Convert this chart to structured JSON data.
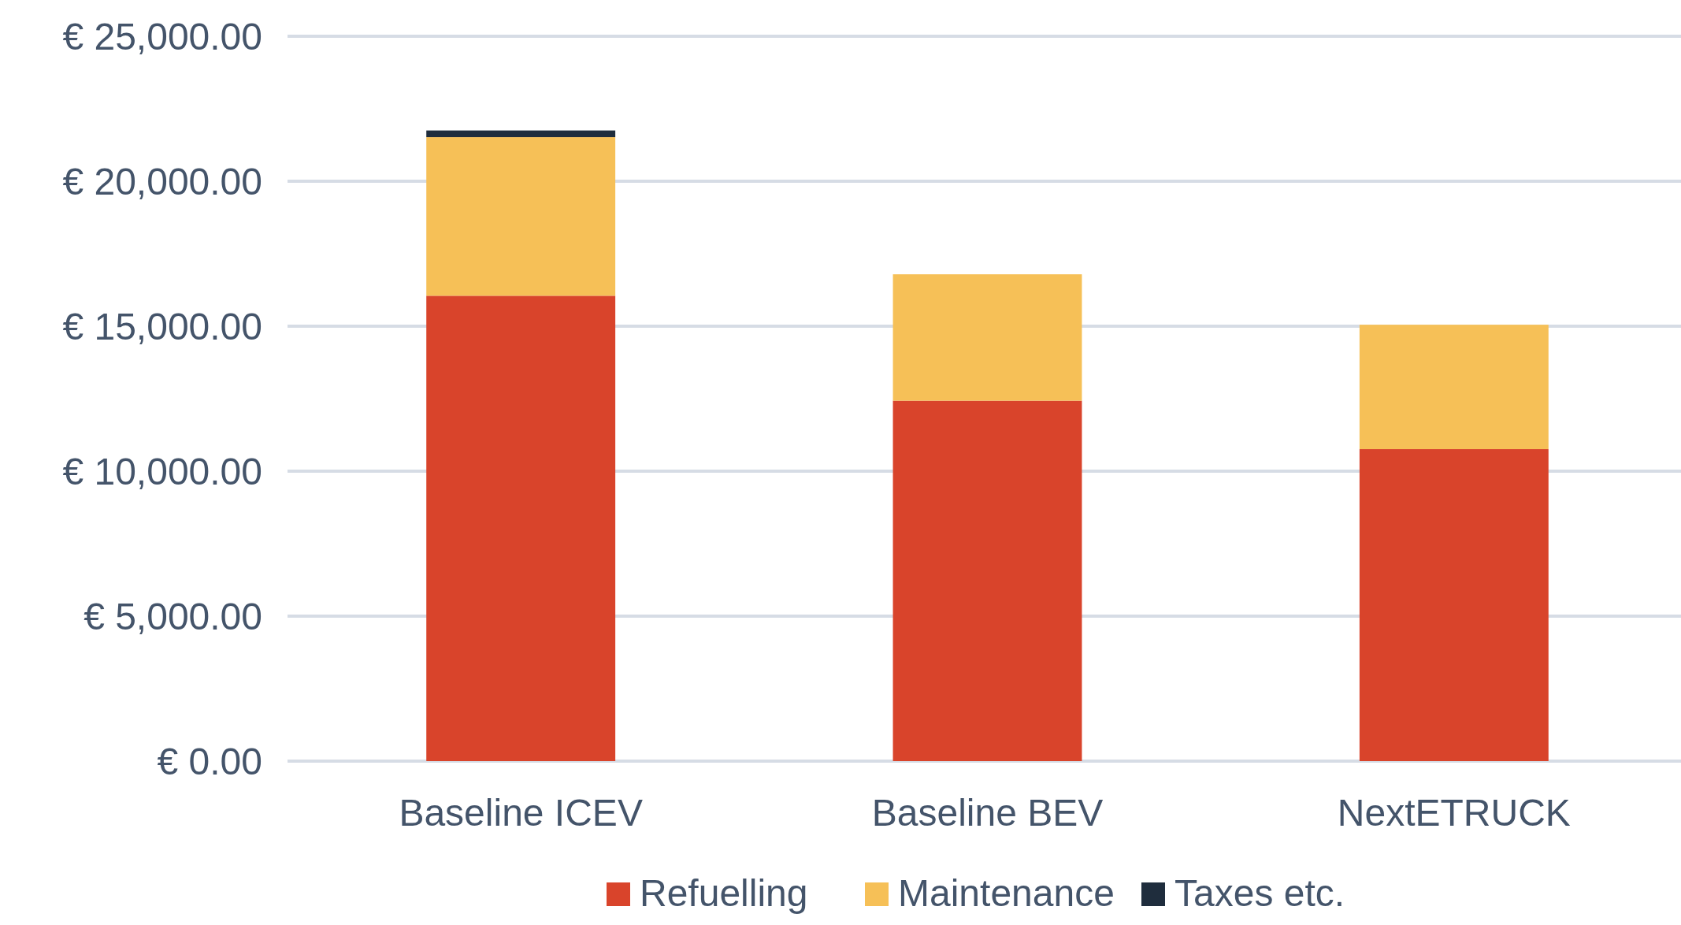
{
  "chart_data": {
    "type": "bar",
    "stacked": true,
    "categories": [
      "Baseline ICEV",
      "Baseline BEV",
      "NextETRUCK"
    ],
    "series": [
      {
        "name": "Refuelling",
        "color": "#d9442b",
        "values": [
          16050,
          12430,
          10760
        ]
      },
      {
        "name": "Maintenance",
        "color": "#f6c057",
        "values": [
          5470,
          4360,
          4290
        ]
      },
      {
        "name": "Taxes etc.",
        "color": "#1f2d3d",
        "values": [
          230,
          0,
          0
        ]
      }
    ],
    "ylim": [
      0,
      25000
    ],
    "yticks": [
      {
        "value": 0,
        "label": "€ 0.00"
      },
      {
        "value": 5000,
        "label": "€ 5,000.00"
      },
      {
        "value": 10000,
        "label": "€ 10,000.00"
      },
      {
        "value": 15000,
        "label": "€ 15,000.00"
      },
      {
        "value": 20000,
        "label": "€ 20,000.00"
      },
      {
        "value": 25000,
        "label": "€ 25,000.00"
      }
    ],
    "grid": "y",
    "legend": "bottom"
  }
}
